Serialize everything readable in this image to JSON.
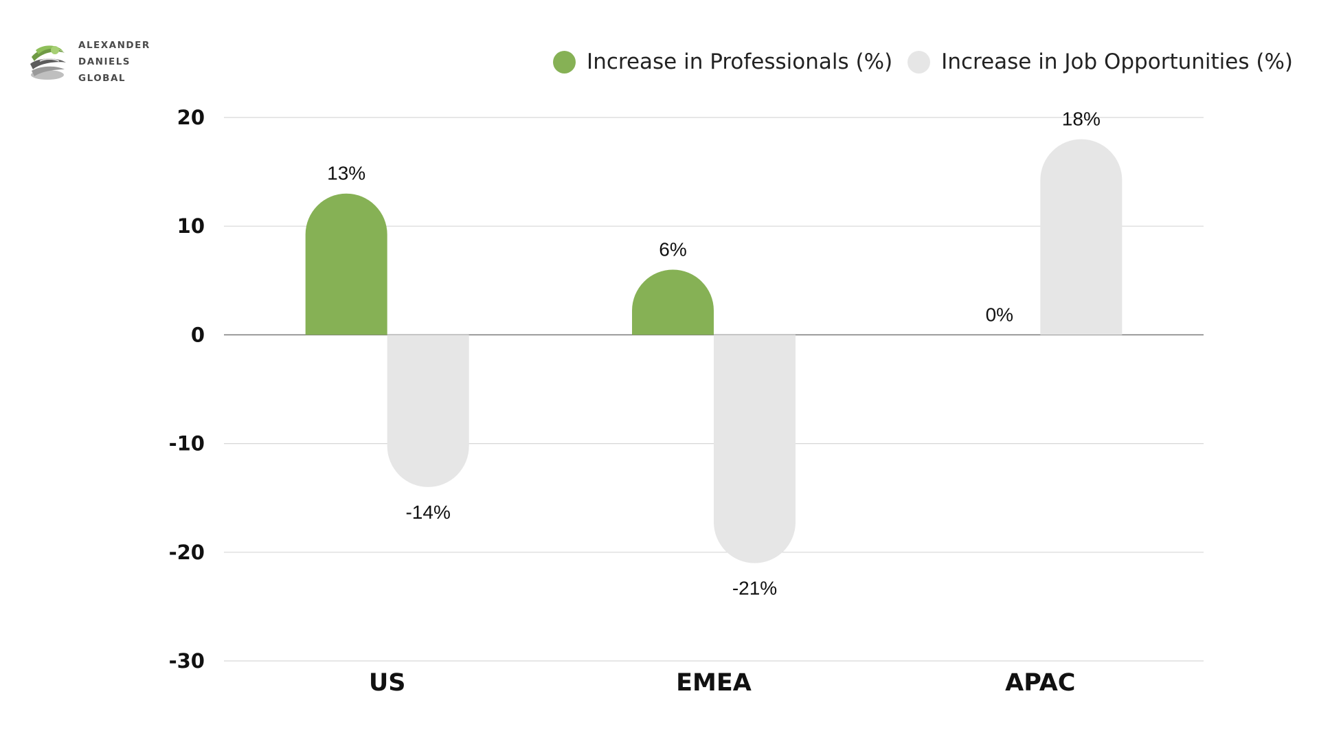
{
  "brand": {
    "logo_lines": [
      "ALEXANDER",
      "DANIELS",
      "GLOBAL"
    ],
    "logo_icon": "globe-swirl-icon"
  },
  "colors": {
    "professionals": "#86b155",
    "job_opportunities": "#e6e6e6",
    "gridline": "#d6d6d6",
    "baseline": "#7a7a7a"
  },
  "chart_data": {
    "type": "bar",
    "categories": [
      "US",
      "EMEA",
      "APAC"
    ],
    "series": [
      {
        "name": "Increase in Professionals (%)",
        "values": [
          13,
          6,
          0
        ],
        "labels": [
          "13%",
          "6%",
          "0%"
        ],
        "color": "#86b155"
      },
      {
        "name": "Increase in Job Opportunities (%)",
        "values": [
          -14,
          -21,
          18
        ],
        "labels": [
          "-14%",
          "-21%",
          "18%"
        ],
        "color": "#e6e6e6"
      }
    ],
    "yticks": [
      20,
      10,
      0,
      -10,
      -20,
      -30
    ],
    "ylim": [
      -30,
      20
    ],
    "grid": true,
    "legend_position": "top-right",
    "bar_style": "rounded-end"
  }
}
